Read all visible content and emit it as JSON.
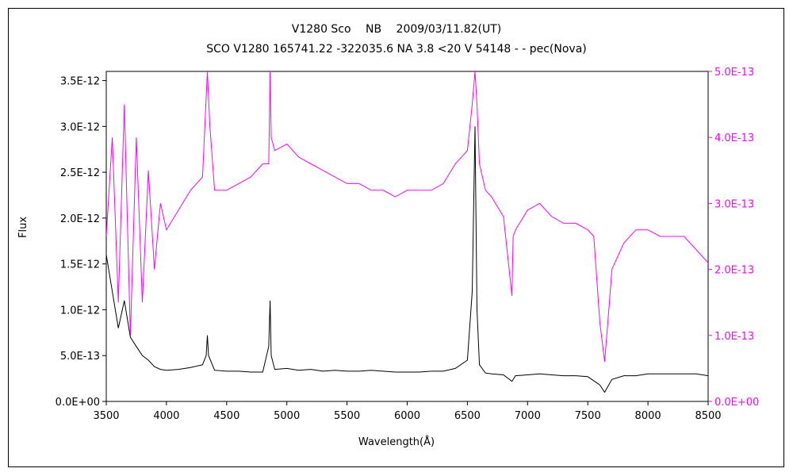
{
  "chart_data": {
    "type": "line",
    "title": "V1280 Sco　 NB　 2009/03/11.82(UT)",
    "subtitle": "SCO V1280 165741.22 -322035.6 NA 3.8 <20 V 54148 - - pec(Nova)",
    "xlabel": "Wavelength(Å)",
    "ylabel": "Flux",
    "xlim": [
      3500,
      8500
    ],
    "ylim_left": [
      0,
      3.6e-12
    ],
    "ylim_right": [
      0,
      5e-13
    ],
    "x_ticks": [
      "3500",
      "4000",
      "4500",
      "5000",
      "5500",
      "6000",
      "6500",
      "7000",
      "7500",
      "8000",
      "8500"
    ],
    "y_ticks_left": [
      "0.0E+00",
      "5.0E-13",
      "1.0E-12",
      "1.5E-12",
      "2.0E-12",
      "2.5E-12",
      "3.0E-12",
      "3.5E-12"
    ],
    "y_ticks_right": [
      "0.0E+00",
      "1.0E-13",
      "2.0E-13",
      "3.0E-13",
      "4.0E-13",
      "5.0E-13"
    ],
    "grid": false,
    "series": [
      {
        "axis": "left",
        "color": "#000000",
        "x": [
          3500,
          3550,
          3600,
          3650,
          3700,
          3750,
          3800,
          3850,
          3900,
          3950,
          4000,
          4100,
          4200,
          4300,
          4330,
          4340,
          4350,
          4400,
          4500,
          4600,
          4700,
          4800,
          4850,
          4861,
          4870,
          4900,
          5000,
          5100,
          5200,
          5300,
          5400,
          5500,
          5600,
          5700,
          5800,
          5900,
          6000,
          6100,
          6200,
          6300,
          6400,
          6500,
          6540,
          6563,
          6580,
          6600,
          6650,
          6700,
          6800,
          6870,
          6900,
          7000,
          7100,
          7200,
          7300,
          7400,
          7500,
          7600,
          7640,
          7700,
          7800,
          7900,
          8000,
          8100,
          8200,
          8300,
          8400,
          8500
        ],
        "y": [
          1.6e-12,
          1.2e-12,
          8e-13,
          1.1e-12,
          7e-13,
          6e-13,
          5e-13,
          4.5e-13,
          3.8e-13,
          3.5e-13,
          3.4e-13,
          3.5e-13,
          3.7e-13,
          4e-13,
          5e-13,
          7.2e-13,
          5e-13,
          3.4e-13,
          3.3e-13,
          3.3e-13,
          3.2e-13,
          3.2e-13,
          6e-13,
          1.1e-12,
          5e-13,
          3.5e-13,
          3.6e-13,
          3.4e-13,
          3.5e-13,
          3.3e-13,
          3.4e-13,
          3.3e-13,
          3.3e-13,
          3.4e-13,
          3.3e-13,
          3.2e-13,
          3.2e-13,
          3.2e-13,
          3.3e-13,
          3.3e-13,
          3.6e-13,
          4.5e-13,
          1.2e-12,
          3e-12,
          1e-12,
          4e-13,
          3.1e-13,
          3e-13,
          2.9e-13,
          2.2e-13,
          2.8e-13,
          2.9e-13,
          3e-13,
          2.9e-13,
          2.8e-13,
          2.8e-13,
          2.7e-13,
          1.8e-13,
          1e-13,
          2.4e-13,
          2.8e-13,
          2.8e-13,
          3e-13,
          3e-13,
          3e-13,
          3e-13,
          3e-13,
          2.8e-13
        ]
      },
      {
        "axis": "right",
        "color": "#ff00ff",
        "x": [
          3500,
          3550,
          3600,
          3650,
          3700,
          3750,
          3800,
          3850,
          3900,
          3950,
          4000,
          4100,
          4200,
          4300,
          4340,
          4360,
          4400,
          4500,
          4600,
          4700,
          4800,
          4850,
          4861,
          4870,
          4900,
          5000,
          5100,
          5200,
          5300,
          5400,
          5500,
          5600,
          5700,
          5800,
          5900,
          6000,
          6100,
          6200,
          6300,
          6400,
          6500,
          6540,
          6563,
          6580,
          6600,
          6650,
          6700,
          6800,
          6870,
          6880,
          6900,
          7000,
          7100,
          7200,
          7300,
          7400,
          7500,
          7550,
          7600,
          7640,
          7680,
          7700,
          7800,
          7900,
          8000,
          8100,
          8200,
          8300,
          8400,
          8500
        ],
        "y": [
          2.5e-13,
          4e-13,
          1.5e-13,
          4.5e-13,
          1e-13,
          4e-13,
          1.5e-13,
          3.5e-13,
          2e-13,
          3e-13,
          2.6e-13,
          2.9e-13,
          3.2e-13,
          3.4e-13,
          5e-13,
          4.2e-13,
          3.2e-13,
          3.2e-13,
          3.3e-13,
          3.4e-13,
          3.6e-13,
          3.6e-13,
          5e-13,
          4e-13,
          3.8e-13,
          3.9e-13,
          3.7e-13,
          3.6e-13,
          3.5e-13,
          3.4e-13,
          3.3e-13,
          3.3e-13,
          3.2e-13,
          3.2e-13,
          3.1e-13,
          3.2e-13,
          3.2e-13,
          3.2e-13,
          3.3e-13,
          3.6e-13,
          3.8e-13,
          4.5e-13,
          5e-13,
          4.5e-13,
          3.6e-13,
          3.2e-13,
          3.1e-13,
          2.8e-13,
          1.6e-13,
          2.5e-13,
          2.6e-13,
          2.9e-13,
          3e-13,
          2.8e-13,
          2.7e-13,
          2.7e-13,
          2.6e-13,
          2.5e-13,
          1.2e-13,
          6e-14,
          1.5e-13,
          2e-13,
          2.4e-13,
          2.6e-13,
          2.6e-13,
          2.5e-13,
          2.5e-13,
          2.5e-13,
          2.3e-13,
          2.1e-13
        ]
      }
    ]
  }
}
